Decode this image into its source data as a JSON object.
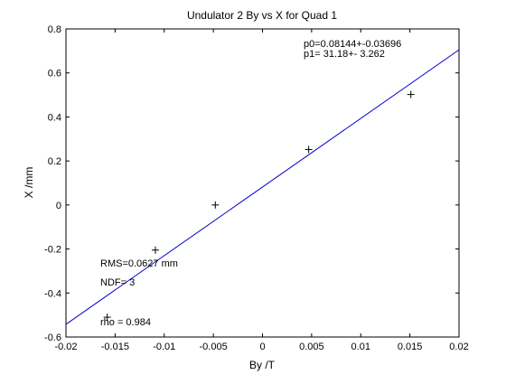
{
  "chart_data": {
    "type": "scatter",
    "title": "Undulator 2 By vs X for Quad 1",
    "xlabel": "By /T",
    "ylabel": "X /mm",
    "xlim": [
      -0.02,
      0.02
    ],
    "ylim": [
      -0.6,
      0.8
    ],
    "grid": false,
    "x_ticks": [
      "-0.02",
      "-0.015",
      "-0.01",
      "-0.005",
      "0",
      "0.005",
      "0.01",
      "0.015",
      "0.02"
    ],
    "y_ticks": [
      "-0.6",
      "-0.4",
      "-0.2",
      "0",
      "0.2",
      "0.4",
      "0.6",
      "0.8"
    ],
    "points": [
      {
        "x": -0.0158,
        "y": -0.51
      },
      {
        "x": -0.0109,
        "y": -0.205
      },
      {
        "x": -0.0048,
        "y": 0.0
      },
      {
        "x": 0.0047,
        "y": 0.252
      },
      {
        "x": 0.0151,
        "y": 0.502
      }
    ],
    "fit_line": {
      "p0": 0.08144,
      "p1": 31.18,
      "color": "#0000cc"
    },
    "annotations": {
      "p0": "p0=0.08144+-0.03696",
      "p1": "p1=  31.18+- 3.262",
      "rms": "RMS=0.0627 mm",
      "ndf": "NDF=    3",
      "rho": "rho    =  0.984"
    }
  }
}
